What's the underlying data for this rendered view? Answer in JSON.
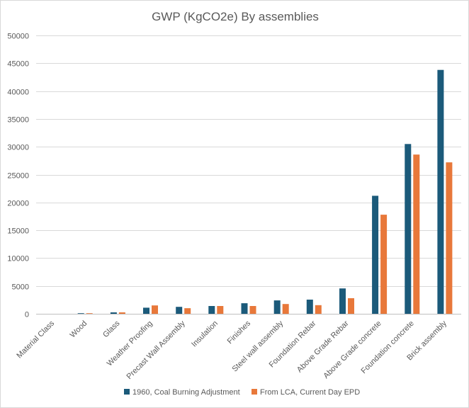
{
  "chart_data": {
    "type": "bar",
    "title": "GWP (KgCO2e) By assemblies",
    "xlabel": "",
    "ylabel": "",
    "ylim": [
      0,
      50000
    ],
    "yticks": [
      0,
      5000,
      10000,
      15000,
      20000,
      25000,
      30000,
      35000,
      40000,
      45000,
      50000
    ],
    "ytick_labels": [
      "0",
      "5000",
      "10000",
      "15000",
      "20000",
      "25000",
      "30000",
      "35000",
      "40000",
      "45000",
      "50000"
    ],
    "grid": true,
    "legend_position": "bottom",
    "categories": [
      "Material Class",
      "Wood",
      "Glass",
      "Weather Proofing",
      "Precast Wall Assembly",
      "Insulation",
      "Finishes",
      "Steel wall assembly",
      "Foundation Rebar",
      "Above Grade Rebar",
      "Above Grade concrete",
      "Foundation concrete",
      "Brick assembly"
    ],
    "series": [
      {
        "name": "1960, Coal Burning Adjustment",
        "color": "#1b5a7a",
        "values": [
          0,
          100,
          250,
          1100,
          1250,
          1400,
          1900,
          2400,
          2550,
          4550,
          21200,
          30500,
          43800
        ]
      },
      {
        "name": "From LCA, Current Day EPD",
        "color": "#e8783a",
        "values": [
          0,
          100,
          250,
          1500,
          1000,
          1400,
          1400,
          1750,
          1550,
          2800,
          17800,
          28600,
          27200
        ]
      }
    ]
  }
}
